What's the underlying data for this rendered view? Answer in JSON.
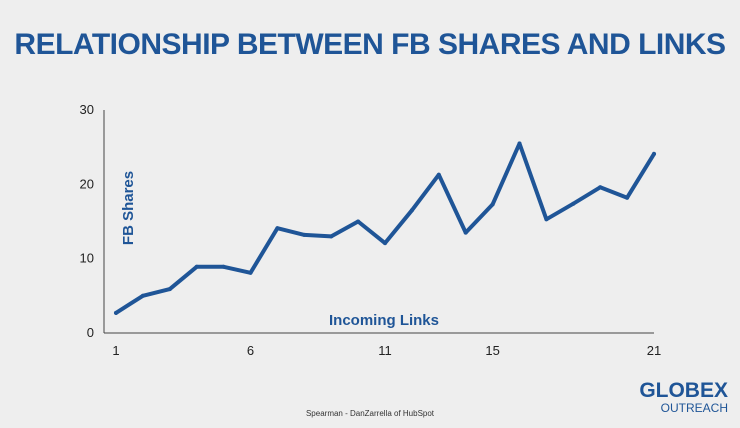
{
  "chart_data": {
    "type": "line",
    "title": "RELATIONSHIP BETWEEN FB SHARES AND LINKS",
    "xlabel": "Incoming Links",
    "ylabel": "FB Shares",
    "x": [
      1,
      2,
      3,
      4,
      5,
      6,
      7,
      8,
      9,
      10,
      11,
      12,
      13,
      14,
      15,
      16,
      17,
      18,
      19,
      20,
      21
    ],
    "x_ticks": [
      1,
      6,
      11,
      15,
      21
    ],
    "y_ticks": [
      0,
      10,
      20,
      30
    ],
    "xlim": [
      1,
      21
    ],
    "ylim": [
      0,
      30
    ],
    "grid": false,
    "series": [
      {
        "values": [
          2.7,
          5.0,
          5.9,
          8.9,
          8.9,
          8.1,
          14.1,
          13.2,
          13.0,
          15.0,
          12.1,
          16.5,
          21.3,
          13.5,
          17.3,
          25.5,
          15.3,
          17.4,
          19.6,
          18.2,
          24.1
        ],
        "color": "#1f5597"
      }
    ]
  },
  "source_note": "Spearman - DanZarrella of HubSpot",
  "logo": {
    "top": "GLOBEX",
    "bottom": "OUTREACH"
  }
}
